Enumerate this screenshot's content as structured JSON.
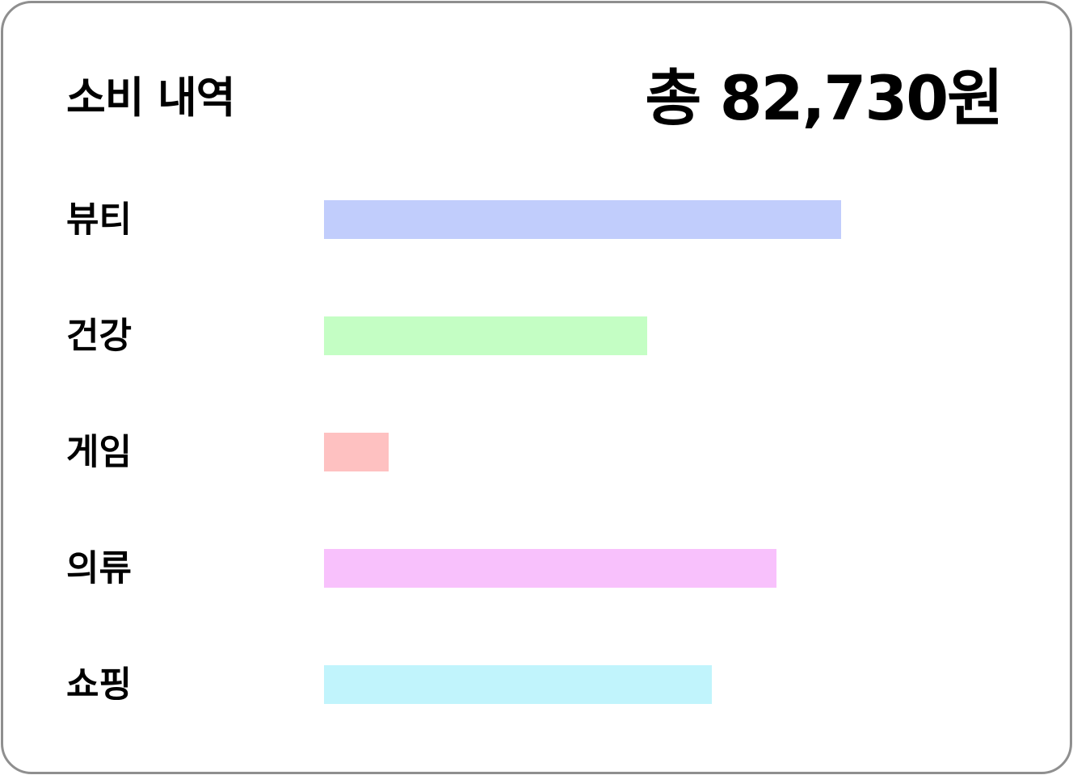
{
  "header": {
    "title": "소비 내역",
    "total": "총 82,730원"
  },
  "chart_data": {
    "type": "bar",
    "orientation": "horizontal",
    "title": "",
    "xlabel": "",
    "ylabel": "",
    "categories": [
      "뷰티",
      "건강",
      "게임",
      "의류",
      "쇼핑"
    ],
    "values": [
      0.8,
      0.5,
      0.1,
      0.7,
      0.6
    ],
    "value_unit": "fraction of track",
    "colors": [
      "#c1cdfc",
      "#c4fec4",
      "#fec1c1",
      "#f8c1fc",
      "#c1f4fc"
    ],
    "xlim": [
      0,
      1
    ],
    "grid": false,
    "legend": "none"
  }
}
